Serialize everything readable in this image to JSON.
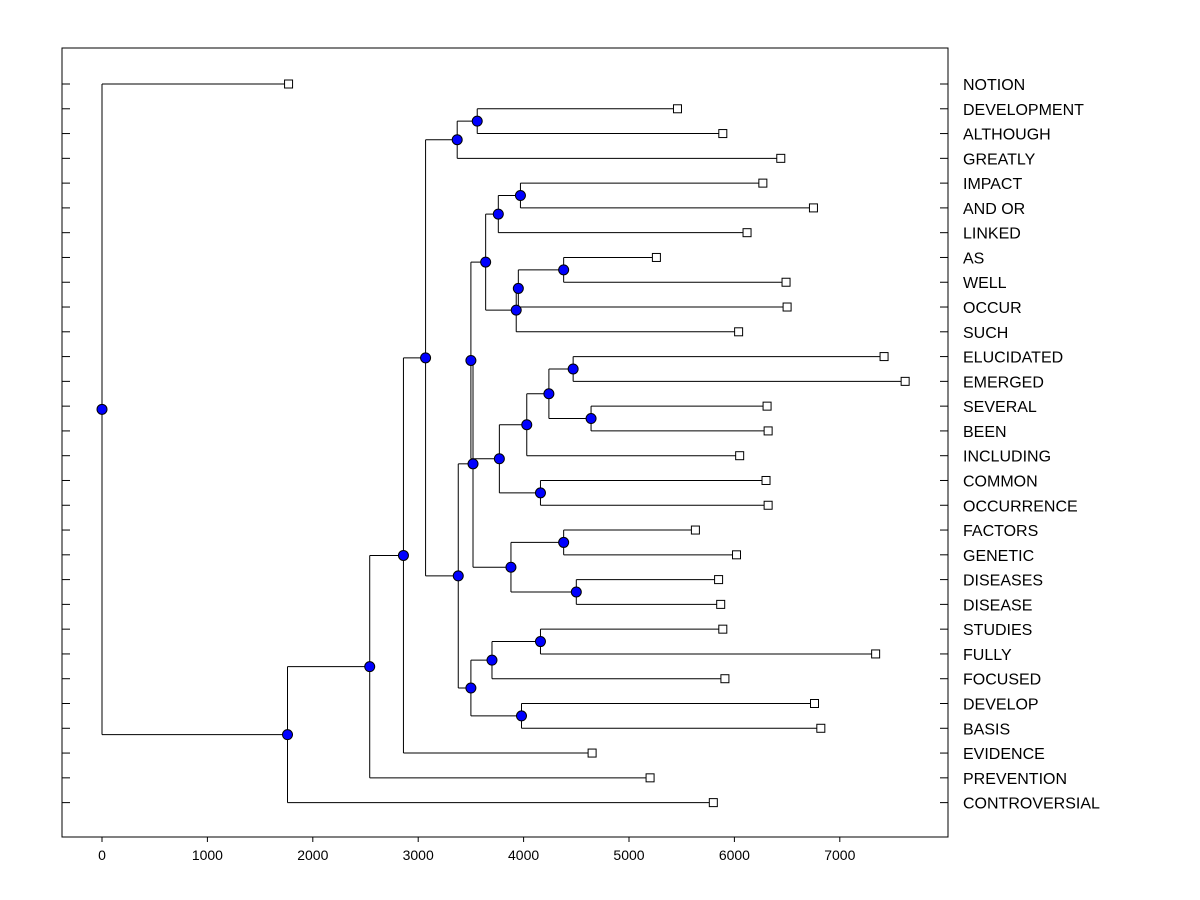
{
  "chart_data": {
    "type": "dendrogram",
    "title": "",
    "xlabel": "",
    "ylabel": "",
    "xlim": [
      -380,
      8040
    ],
    "x_ticks": [
      0,
      1000,
      2000,
      3000,
      4000,
      5000,
      6000,
      7000
    ],
    "x_tick_labels": [
      "0",
      "1000",
      "2000",
      "3000",
      "4000",
      "5000",
      "6000",
      "7000"
    ],
    "node_color": "#0000ff",
    "leaves": [
      {
        "label": "NOTION",
        "x": 1770
      },
      {
        "label": "DEVELOPMENT",
        "x": 5460
      },
      {
        "label": "ALTHOUGH",
        "x": 5890
      },
      {
        "label": "GREATLY",
        "x": 6440
      },
      {
        "label": "IMPACT",
        "x": 6270
      },
      {
        "label": "AND OR",
        "x": 6750
      },
      {
        "label": "LINKED",
        "x": 6120
      },
      {
        "label": "AS",
        "x": 5260
      },
      {
        "label": "WELL",
        "x": 6490
      },
      {
        "label": "OCCUR",
        "x": 6500
      },
      {
        "label": "SUCH",
        "x": 6040
      },
      {
        "label": "ELUCIDATED",
        "x": 7420
      },
      {
        "label": "EMERGED",
        "x": 7620
      },
      {
        "label": "SEVERAL",
        "x": 6310
      },
      {
        "label": "BEEN",
        "x": 6320
      },
      {
        "label": "INCLUDING",
        "x": 6050
      },
      {
        "label": "COMMON",
        "x": 6300
      },
      {
        "label": "OCCURRENCE",
        "x": 6320
      },
      {
        "label": "FACTORS",
        "x": 5630
      },
      {
        "label": "GENETIC",
        "x": 6020
      },
      {
        "label": "DISEASES",
        "x": 5850
      },
      {
        "label": "DISEASE",
        "x": 5870
      },
      {
        "label": "STUDIES",
        "x": 5890
      },
      {
        "label": "FULLY",
        "x": 7340
      },
      {
        "label": "FOCUSED",
        "x": 5910
      },
      {
        "label": "DEVELOP",
        "x": 6760
      },
      {
        "label": "BASIS",
        "x": 6820
      },
      {
        "label": "EVIDENCE",
        "x": 4650
      },
      {
        "label": "PREVENTION",
        "x": 5200
      },
      {
        "label": "CONTROVERSIAL",
        "x": 5800
      }
    ],
    "merges": [
      {
        "id": "m1",
        "x": 3560,
        "children": [
          1,
          2
        ]
      },
      {
        "id": "m2",
        "x": 3370,
        "children": [
          "m1",
          3
        ]
      },
      {
        "id": "m3",
        "x": 3970,
        "children": [
          4,
          5
        ]
      },
      {
        "id": "m4",
        "x": 3760,
        "children": [
          "m3",
          6
        ]
      },
      {
        "id": "m5",
        "x": 4380,
        "children": [
          7,
          8
        ]
      },
      {
        "id": "m6",
        "x": 3950,
        "children": [
          "m5",
          9
        ]
      },
      {
        "id": "m7",
        "x": 3930,
        "children": [
          "m6",
          10
        ]
      },
      {
        "id": "m8",
        "x": 3640,
        "children": [
          "m4",
          "m7"
        ]
      },
      {
        "id": "m9",
        "x": 4470,
        "children": [
          11,
          12
        ]
      },
      {
        "id": "m10",
        "x": 4640,
        "children": [
          13,
          14
        ]
      },
      {
        "id": "m11",
        "x": 4240,
        "children": [
          "m9",
          "m10"
        ]
      },
      {
        "id": "m12",
        "x": 4030,
        "children": [
          "m11",
          15
        ]
      },
      {
        "id": "m13",
        "x": 4160,
        "children": [
          16,
          17
        ]
      },
      {
        "id": "m14",
        "x": 3770,
        "children": [
          "m12",
          "m13"
        ]
      },
      {
        "id": "m15",
        "x": 3500,
        "children": [
          "m8",
          "m14"
        ]
      },
      {
        "id": "m16",
        "x": 4380,
        "children": [
          18,
          19
        ]
      },
      {
        "id": "m17",
        "x": 4500,
        "children": [
          20,
          21
        ]
      },
      {
        "id": "m18",
        "x": 3880,
        "children": [
          "m16",
          "m17"
        ]
      },
      {
        "id": "m19",
        "x": 3520,
        "children": [
          "m15",
          "m18"
        ]
      },
      {
        "id": "m20",
        "x": 4160,
        "children": [
          22,
          23
        ]
      },
      {
        "id": "m21",
        "x": 3700,
        "children": [
          "m20",
          24
        ]
      },
      {
        "id": "m22",
        "x": 3980,
        "children": [
          25,
          26
        ]
      },
      {
        "id": "m23",
        "x": 3500,
        "children": [
          "m21",
          "m22"
        ]
      },
      {
        "id": "m24",
        "x": 3380,
        "children": [
          "m19",
          "m23"
        ]
      },
      {
        "id": "m25",
        "x": 3070,
        "children": [
          "m2",
          "m24"
        ]
      },
      {
        "id": "m26",
        "x": 2860,
        "children": [
          "m25",
          27
        ]
      },
      {
        "id": "m27",
        "x": 2540,
        "children": [
          "m26",
          28
        ]
      },
      {
        "id": "m28",
        "x": 1760,
        "children": [
          "m27",
          29
        ]
      },
      {
        "id": "m29",
        "x": 0,
        "children": [
          0,
          "m28"
        ]
      }
    ]
  }
}
